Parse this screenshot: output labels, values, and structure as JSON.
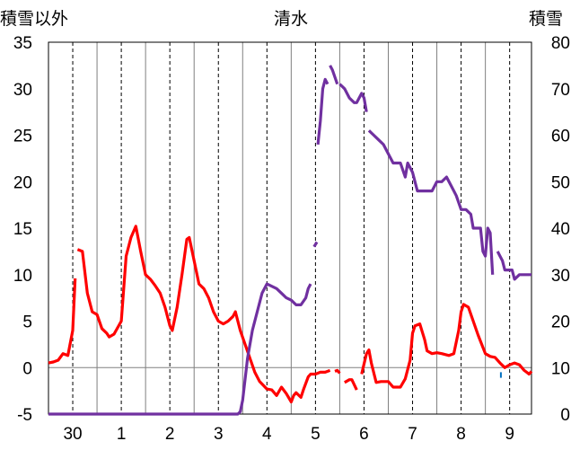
{
  "chart_data": {
    "type": "line",
    "title": "清水",
    "ylabel_left": "積雪以外",
    "ylabel_right": "積雪",
    "x_categories": [
      "30",
      "1",
      "2",
      "3",
      "4",
      "5",
      "6",
      "7",
      "8",
      "9"
    ],
    "ylim_left": [
      -5,
      35
    ],
    "yticks_left": [
      "-5",
      "0",
      "5",
      "10",
      "15",
      "20",
      "25",
      "30",
      "35"
    ],
    "ylim_right": [
      0,
      80
    ],
    "yticks_right": [
      "0",
      "10",
      "20",
      "30",
      "40",
      "50",
      "60",
      "70",
      "80"
    ],
    "grid": true,
    "series": [
      {
        "axis": "left",
        "color": "#ff0000",
        "segments": [
          [
            [
              -0.5,
              0.5
            ],
            [
              -0.4,
              0.6
            ],
            [
              -0.3,
              0.8
            ],
            [
              -0.2,
              1.5
            ],
            [
              -0.1,
              1.3
            ],
            [
              0,
              4.0
            ],
            [
              0.05,
              9.6
            ]
          ],
          [
            [
              0.1,
              12.7
            ],
            [
              0.2,
              12.5
            ],
            [
              0.3,
              8.0
            ],
            [
              0.4,
              6.0
            ],
            [
              0.5,
              5.7
            ],
            [
              0.6,
              4.2
            ],
            [
              0.7,
              3.7
            ],
            [
              0.75,
              3.3
            ],
            [
              0.85,
              3.6
            ],
            [
              1,
              5.0
            ],
            [
              1.1,
              12.0
            ],
            [
              1.2,
              14.0
            ],
            [
              1.3,
              15.2
            ],
            [
              1.4,
              12.5
            ],
            [
              1.5,
              10.0
            ],
            [
              1.6,
              9.5
            ],
            [
              1.7,
              8.8
            ],
            [
              1.8,
              8.0
            ],
            [
              1.9,
              6.5
            ],
            [
              2.0,
              4.5
            ],
            [
              2.05,
              4.0
            ],
            [
              2.15,
              6.5
            ],
            [
              2.25,
              10.0
            ],
            [
              2.35,
              13.8
            ],
            [
              2.4,
              14.0
            ],
            [
              2.5,
              11.5
            ],
            [
              2.6,
              9.0
            ],
            [
              2.7,
              8.5
            ],
            [
              2.8,
              7.5
            ],
            [
              2.9,
              6.0
            ],
            [
              3.0,
              5.0
            ],
            [
              3.1,
              4.7
            ],
            [
              3.2,
              5.0
            ],
            [
              3.3,
              5.5
            ],
            [
              3.35,
              6.0
            ],
            [
              3.45,
              4.0
            ],
            [
              3.55,
              2.5
            ],
            [
              3.65,
              1.0
            ],
            [
              3.75,
              -0.5
            ],
            [
              3.85,
              -1.5
            ],
            [
              4.0,
              -2.3
            ],
            [
              4.1,
              -2.4
            ],
            [
              4.2,
              -3.0
            ],
            [
              4.3,
              -2.1
            ],
            [
              4.4,
              -2.8
            ],
            [
              4.5,
              -3.7
            ],
            [
              4.55,
              -3.0
            ],
            [
              4.6,
              -2.7
            ],
            [
              4.7,
              -3.2
            ],
            [
              4.75,
              -2.4
            ],
            [
              4.85,
              -1.0
            ],
            [
              4.9,
              -0.7
            ],
            [
              5.0,
              -0.7
            ],
            [
              5.1,
              -0.5
            ],
            [
              5.2,
              -0.5
            ],
            [
              5.3,
              -0.3
            ]
          ],
          [
            [
              5.4,
              -0.4
            ],
            [
              5.45,
              -0.3
            ],
            [
              5.5,
              -0.6
            ]
          ],
          [
            [
              5.6,
              -1.6
            ],
            [
              5.7,
              -1.3
            ],
            [
              5.75,
              -1.3
            ],
            [
              5.85,
              -2.4
            ]
          ],
          [
            [
              5.95,
              -0.7
            ],
            [
              6.05,
              1.5
            ],
            [
              6.1,
              1.9
            ],
            [
              6.15,
              0.5
            ],
            [
              6.25,
              -1.6
            ],
            [
              6.35,
              -1.5
            ],
            [
              6.5,
              -1.5
            ],
            [
              6.6,
              -2.1
            ],
            [
              6.75,
              -2.1
            ],
            [
              6.85,
              -1.2
            ],
            [
              6.95,
              0.8
            ],
            [
              7.0,
              3.7
            ],
            [
              7.05,
              4.5
            ],
            [
              7.15,
              4.7
            ],
            [
              7.25,
              3.0
            ],
            [
              7.3,
              1.8
            ],
            [
              7.4,
              1.5
            ],
            [
              7.5,
              1.6
            ],
            [
              7.6,
              1.5
            ],
            [
              7.75,
              1.3
            ],
            [
              7.85,
              1.5
            ],
            [
              7.95,
              4.0
            ],
            [
              8.0,
              6.0
            ],
            [
              8.05,
              6.8
            ],
            [
              8.15,
              6.5
            ],
            [
              8.25,
              5.0
            ],
            [
              8.35,
              3.5
            ],
            [
              8.5,
              1.5
            ],
            [
              8.6,
              1.2
            ],
            [
              8.7,
              1.1
            ],
            [
              8.8,
              0.5
            ],
            [
              8.9,
              0.0
            ],
            [
              9.0,
              0.3
            ],
            [
              9.1,
              0.5
            ],
            [
              9.2,
              0.3
            ],
            [
              9.3,
              -0.3
            ],
            [
              9.35,
              -0.5
            ],
            [
              9.4,
              -0.7
            ],
            [
              9.45,
              -0.4
            ]
          ]
        ]
      },
      {
        "axis": "right",
        "color": "#7030a0",
        "segments": [
          [
            [
              -0.5,
              0
            ],
            [
              3.4,
              0
            ],
            [
              3.45,
              0.5
            ],
            [
              3.5,
              3
            ],
            [
              3.6,
              12
            ],
            [
              3.7,
              18
            ],
            [
              3.8,
              22
            ],
            [
              3.9,
              26
            ],
            [
              4.0,
              28
            ],
            [
              4.1,
              27.5
            ],
            [
              4.2,
              27
            ],
            [
              4.3,
              26
            ],
            [
              4.4,
              25
            ],
            [
              4.5,
              24.5
            ],
            [
              4.6,
              23.5
            ],
            [
              4.7,
              23.5
            ],
            [
              4.8,
              25
            ],
            [
              4.85,
              27
            ],
            [
              4.9,
              28
            ]
          ],
          [
            [
              4.97,
              36
            ],
            [
              5.03,
              37
            ]
          ],
          [
            [
              5.05,
              58
            ],
            [
              5.1,
              63
            ],
            [
              5.15,
              70
            ],
            [
              5.2,
              72
            ],
            [
              5.25,
              71
            ]
          ],
          [
            [
              5.3,
              75
            ],
            [
              5.35,
              74
            ],
            [
              5.45,
              71
            ]
          ],
          [
            [
              5.5,
              71
            ],
            [
              5.6,
              70
            ],
            [
              5.7,
              68
            ],
            [
              5.8,
              67
            ],
            [
              5.85,
              67
            ],
            [
              5.95,
              69
            ],
            [
              6.0,
              68
            ],
            [
              6.05,
              65
            ]
          ],
          [
            [
              6.1,
              61
            ],
            [
              6.2,
              60
            ],
            [
              6.3,
              59
            ],
            [
              6.4,
              58
            ],
            [
              6.5,
              56
            ],
            [
              6.6,
              54
            ],
            [
              6.7,
              54
            ],
            [
              6.75,
              54
            ],
            [
              6.85,
              51
            ],
            [
              6.9,
              54
            ],
            [
              6.95,
              53
            ],
            [
              7.0,
              52
            ],
            [
              7.1,
              48
            ],
            [
              7.2,
              48
            ],
            [
              7.3,
              48
            ],
            [
              7.4,
              48
            ],
            [
              7.5,
              50
            ],
            [
              7.6,
              50
            ],
            [
              7.7,
              51
            ],
            [
              7.8,
              49
            ],
            [
              7.9,
              47
            ],
            [
              8.0,
              44
            ],
            [
              8.1,
              44
            ],
            [
              8.2,
              43
            ],
            [
              8.25,
              40
            ],
            [
              8.3,
              40
            ],
            [
              8.4,
              40
            ],
            [
              8.45,
              35
            ],
            [
              8.5,
              34
            ],
            [
              8.55,
              40
            ],
            [
              8.6,
              39
            ],
            [
              8.65,
              30
            ]
          ],
          [
            [
              8.75,
              35
            ],
            [
              8.8,
              34
            ],
            [
              8.85,
              33
            ],
            [
              8.9,
              31
            ],
            [
              9.0,
              31
            ],
            [
              9.05,
              31
            ],
            [
              9.1,
              29
            ],
            [
              9.2,
              30
            ],
            [
              9.3,
              30
            ],
            [
              9.4,
              30
            ],
            [
              9.45,
              30
            ]
          ]
        ]
      },
      {
        "axis": "left",
        "color": "#0070c0",
        "segments": [
          [
            [
              8.82,
              -0.5
            ],
            [
              8.82,
              -1.1
            ]
          ]
        ]
      }
    ]
  }
}
